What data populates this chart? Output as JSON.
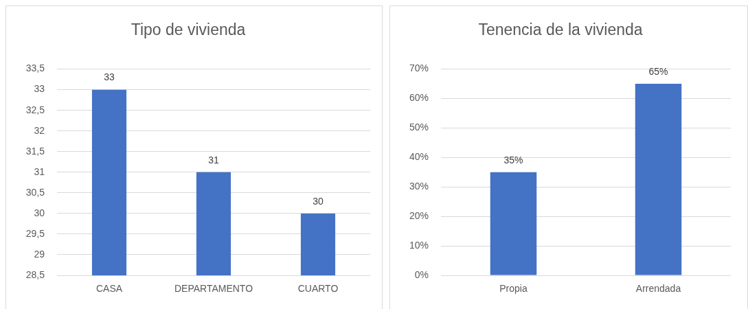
{
  "chart_data": [
    {
      "type": "bar",
      "title": "Tipo de vivienda",
      "categories": [
        "CASA",
        "DEPARTAMENTO",
        "CUARTO"
      ],
      "values": [
        33,
        31,
        30
      ],
      "color": "#4472c4",
      "ylim": [
        28.5,
        33.5
      ],
      "yticks": [
        {
          "value": 28.5,
          "label": "28,5"
        },
        29,
        {
          "value": 29.5,
          "label": "29,5"
        },
        30,
        {
          "value": 30.5,
          "label": "30,5"
        },
        31,
        {
          "value": 31.5,
          "label": "31,5"
        },
        32,
        {
          "value": 32.5,
          "label": "32,5"
        },
        33,
        {
          "value": 33.5,
          "label": "33,5"
        }
      ],
      "grid": "y",
      "data_labels": true
    },
    {
      "type": "bar",
      "title": "Tenencia de la vivienda",
      "categories": [
        "Propia",
        "Arrendada"
      ],
      "values": [
        35,
        65
      ],
      "color": "#4472c4",
      "ylim": [
        0,
        70
      ],
      "yticks": [
        {
          "value": 0,
          "label": "0%"
        },
        {
          "value": 10,
          "label": "10%"
        },
        {
          "value": 20,
          "label": "20%"
        },
        {
          "value": 30,
          "label": "30%"
        },
        {
          "value": 40,
          "label": "40%"
        },
        {
          "value": 50,
          "label": "50%"
        },
        {
          "value": 60,
          "label": "60%"
        },
        {
          "value": 70,
          "label": "70%"
        }
      ],
      "grid": "y",
      "value_labels": [
        "35%",
        "65%"
      ]
    }
  ]
}
